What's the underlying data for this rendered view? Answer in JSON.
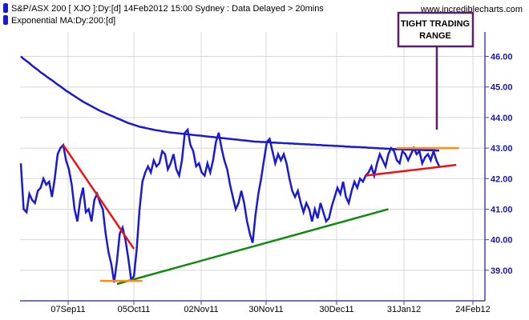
{
  "legend": [
    {
      "text": "S&P/ASX 200 [ XJO ]:Dy:[d]  14Feb2012 15:00 Sydney : Data Delayed > 20mins",
      "color": "#1a1ad0"
    },
    {
      "text": "Exponential MA:Dy:200:[d]",
      "color": "#1a1ad0"
    }
  ],
  "website": "www.incrediblecharts.com",
  "annotation": {
    "lines": [
      "TIGHT TRADING",
      "RANGE"
    ],
    "border_color": "#5a1e6e",
    "pointer_color": "#5a1e6e"
  },
  "colors": {
    "price": "#1a1ad0",
    "ma": "#1a1ad0",
    "axis": "#4040c0",
    "grid": "#d8d8d8",
    "downtrend": "#ee1111",
    "uptrend": "#118811",
    "support": "#ff8c1a",
    "recent_support": "#ee1111"
  },
  "chart_data": {
    "type": "line",
    "x_ticks": [
      "07Sep11",
      "05Oct11",
      "02Nov11",
      "30Nov11",
      "30Dec11",
      "31Jan12",
      "24Feb12"
    ],
    "y_ticks": [
      "39.00",
      "40.00",
      "41.00",
      "42.00",
      "43.00",
      "44.00",
      "45.00",
      "46.00"
    ],
    "ylim": [
      38.0,
      46.8
    ],
    "grid": true,
    "series": [
      {
        "name": "S&P/ASX 200 [ XJO ]",
        "values": [
          42.5,
          41.0,
          40.9,
          41.5,
          41.3,
          41.2,
          41.6,
          41.7,
          42.0,
          41.8,
          41.9,
          41.4,
          42.0,
          42.8,
          43.0,
          43.1,
          42.6,
          42.3,
          41.8,
          41.0,
          40.6,
          41.3,
          41.7,
          40.9,
          41.0,
          40.6,
          41.3,
          41.5,
          41.2,
          41.0,
          40.2,
          39.6,
          39.2,
          38.6,
          39.3,
          40.2,
          40.4,
          40.0,
          39.4,
          38.7,
          38.8,
          39.7,
          41.0,
          41.9,
          42.2,
          42.4,
          42.2,
          42.6,
          42.4,
          42.5,
          42.9,
          42.8,
          42.3,
          42.5,
          42.8,
          42.3,
          42.1,
          42.6,
          43.5,
          43.6,
          43.1,
          42.9,
          42.4,
          42.5,
          42.2,
          42.1,
          42.5,
          42.2,
          42.6,
          43.2,
          43.5,
          43.0,
          42.6,
          42.3,
          41.8,
          41.4,
          41.0,
          41.2,
          41.6,
          41.2,
          40.6,
          40.2,
          39.9,
          40.8,
          41.5,
          42.0,
          42.6,
          43.2,
          43.3,
          42.9,
          42.5,
          42.8,
          42.6,
          42.8,
          42.5,
          42.0,
          41.6,
          41.4,
          41.6,
          41.2,
          40.9,
          41.2,
          41.0,
          40.6,
          41.0,
          40.7,
          41.2,
          40.9,
          40.6,
          40.7,
          41.1,
          41.4,
          41.7,
          41.5,
          41.9,
          41.4,
          41.2,
          41.6,
          41.9,
          41.7,
          42.0,
          41.9,
          42.1,
          42.2,
          42.4,
          42.1,
          42.5,
          42.8,
          42.6,
          42.4,
          42.8,
          43.0,
          42.9,
          42.6,
          42.5,
          42.9,
          42.8,
          42.6,
          42.8,
          43.0,
          42.8,
          42.9,
          42.5,
          42.7,
          42.8,
          42.6,
          42.9,
          42.6,
          42.4
        ]
      },
      {
        "name": "Exponential MA:Dy:200",
        "values": [
          46.0,
          45.92,
          45.85,
          45.78,
          45.7,
          45.63,
          45.56,
          45.48,
          45.42,
          45.35,
          45.28,
          45.22,
          45.15,
          45.08,
          45.02,
          44.95,
          44.88,
          44.82,
          44.76,
          44.7,
          44.64,
          44.58,
          44.52,
          44.47,
          44.42,
          44.37,
          44.32,
          44.27,
          44.22,
          44.18,
          44.14,
          44.1,
          44.06,
          44.02,
          43.98,
          43.94,
          43.9,
          43.86,
          43.82,
          43.79,
          43.76,
          43.73,
          43.7,
          43.68,
          43.66,
          43.64,
          43.62,
          43.6,
          43.58,
          43.57,
          43.55,
          43.54,
          43.52,
          43.51,
          43.5,
          43.49,
          43.48,
          43.47,
          43.46,
          43.45,
          43.44,
          43.43,
          43.42,
          43.41,
          43.4,
          43.39,
          43.38,
          43.37,
          43.36,
          43.35,
          43.34,
          43.33,
          43.32,
          43.31,
          43.3,
          43.29,
          43.28,
          43.27,
          43.26,
          43.25,
          43.24,
          43.23,
          43.22,
          43.21,
          43.21,
          43.2,
          43.2,
          43.19,
          43.19,
          43.18,
          43.18,
          43.17,
          43.17,
          43.16,
          43.16,
          43.15,
          43.15,
          43.14,
          43.14,
          43.13,
          43.13,
          43.12,
          43.12,
          43.11,
          43.11,
          43.1,
          43.1,
          43.09,
          43.09,
          43.08,
          43.08,
          43.07,
          43.07,
          43.06,
          43.06,
          43.05,
          43.05,
          43.04,
          43.04,
          43.03,
          43.03,
          43.02,
          43.02,
          43.01,
          43.01,
          43.0,
          43.0,
          42.99,
          42.99,
          42.98,
          42.98,
          42.97,
          42.97,
          42.96,
          42.96,
          42.96,
          42.95,
          42.95,
          42.95,
          42.94,
          42.94,
          42.94,
          42.94,
          42.93,
          42.93,
          42.93,
          42.93,
          42.92,
          42.92
        ]
      }
    ],
    "trendlines": [
      {
        "name": "downtrend",
        "color": "#ee1111",
        "from": [
          15,
          43.1
        ],
        "to": [
          40,
          39.7
        ]
      },
      {
        "name": "uptrend",
        "color": "#118811",
        "from": [
          34,
          38.55
        ],
        "to": [
          130,
          41.0
        ]
      },
      {
        "name": "support",
        "color": "#ff8c1a",
        "from": [
          28,
          38.65
        ],
        "to": [
          43,
          38.65
        ]
      },
      {
        "name": "recent-support",
        "color": "#ee1111",
        "from": [
          122,
          42.1
        ],
        "to": [
          154,
          42.45
        ]
      },
      {
        "name": "resistance",
        "color": "#ff8c1a",
        "from": [
          133,
          43.0
        ],
        "to": [
          155,
          43.0
        ]
      }
    ]
  }
}
